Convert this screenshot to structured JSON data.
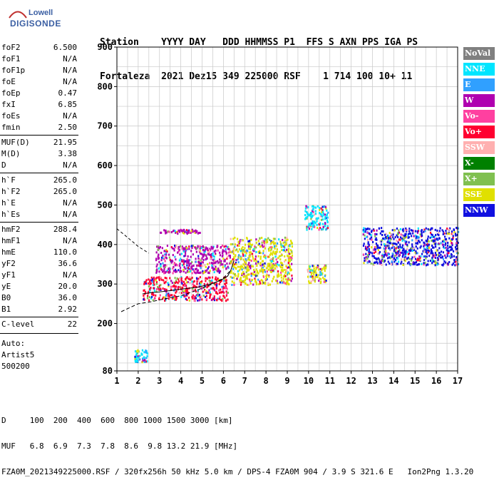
{
  "logo": {
    "line1": "Lowell",
    "line2": "DIGISONDE"
  },
  "header": {
    "row1": "Station    YYYY DAY   DDD HHMMSS P1  FFS S AXN PPS IGA PS",
    "row2": "Fortaleza  2021 Dez15 349 225000 RSF    1 714 100 10+ 11"
  },
  "params": {
    "group1": [
      {
        "label": "foF2",
        "value": "6.500"
      },
      {
        "label": "foF1",
        "value": "N/A"
      },
      {
        "label": "foF1p",
        "value": "N/A"
      },
      {
        "label": "foE",
        "value": "N/A"
      },
      {
        "label": "foEp",
        "value": "0.47"
      },
      {
        "label": "fxI",
        "value": "6.85"
      },
      {
        "label": "foEs",
        "value": "N/A"
      },
      {
        "label": "fmin",
        "value": "2.50"
      }
    ],
    "group2": [
      {
        "label": "MUF(D)",
        "value": "21.95"
      },
      {
        "label": "M(D)",
        "value": "3.38"
      },
      {
        "label": "D",
        "value": "N/A"
      }
    ],
    "group3": [
      {
        "label": "h`F",
        "value": "265.0"
      },
      {
        "label": "h`F2",
        "value": "265.0"
      },
      {
        "label": "h`E",
        "value": "N/A"
      },
      {
        "label": "h`Es",
        "value": "N/A"
      }
    ],
    "group4": [
      {
        "label": "hmF2",
        "value": "288.4"
      },
      {
        "label": "hmF1",
        "value": "N/A"
      },
      {
        "label": "hmE",
        "value": "110.0"
      },
      {
        "label": "yF2",
        "value": "36.6"
      },
      {
        "label": "yF1",
        "value": "N/A"
      },
      {
        "label": "yE",
        "value": "20.0"
      },
      {
        "label": "B0",
        "value": "36.0"
      },
      {
        "label": "B1",
        "value": "2.92"
      }
    ],
    "clevel": {
      "label": "C-level",
      "value": "22"
    },
    "auto": [
      "Auto:",
      "Artist5",
      "500200"
    ]
  },
  "legend": [
    {
      "label": "NoVal",
      "color": "#808080"
    },
    {
      "label": "NNE",
      "color": "#00e5ff"
    },
    {
      "label": "E",
      "color": "#30a0ff"
    },
    {
      "label": "W",
      "color": "#b000b0"
    },
    {
      "label": "Vo-",
      "color": "#ff40a0"
    },
    {
      "label": "Vo+",
      "color": "#ff0030"
    },
    {
      "label": "SSW",
      "color": "#ffb0b0"
    },
    {
      "label": "X-",
      "color": "#008000"
    },
    {
      "label": "X+",
      "color": "#80c050"
    },
    {
      "label": "SSE",
      "color": "#e0e000"
    },
    {
      "label": "NNW",
      "color": "#1010e0"
    }
  ],
  "chart_data": {
    "type": "scatter",
    "xlabel": "",
    "ylabel": "",
    "xlim": [
      1,
      17
    ],
    "ylim": [
      80,
      900
    ],
    "xticks": [
      "1",
      "2",
      "3",
      "4",
      "5",
      "6",
      "7",
      "8",
      "9",
      "10",
      "11",
      "12",
      "13",
      "14",
      "15",
      "16",
      "17"
    ],
    "yticks": [
      "80",
      "200",
      "300",
      "400",
      "500",
      "600",
      "700",
      "800",
      "900"
    ],
    "ytick_values": [
      80,
      200,
      300,
      400,
      500,
      600,
      700,
      800,
      900
    ],
    "grid": true,
    "ionogram_regions": [
      {
        "direction": "W",
        "f_range": [
          3.0,
          4.9
        ],
        "h_range": [
          430,
          440
        ]
      },
      {
        "direction": "W",
        "f_range": [
          2.8,
          6.3
        ],
        "h_range": [
          330,
          400
        ]
      },
      {
        "direction": "Vo+",
        "f_range": [
          2.2,
          6.2
        ],
        "h_range": [
          260,
          320
        ]
      },
      {
        "direction": "SSE",
        "f_range": [
          6.3,
          9.2
        ],
        "h_range": [
          300,
          420
        ]
      },
      {
        "direction": "NNE",
        "f_range": [
          9.8,
          10.9
        ],
        "h_range": [
          440,
          500
        ]
      },
      {
        "direction": "SSE",
        "f_range": [
          9.9,
          10.8
        ],
        "h_range": [
          305,
          350
        ]
      },
      {
        "direction": "NNW",
        "f_range": [
          12.5,
          17.0
        ],
        "h_range": [
          350,
          445
        ]
      },
      {
        "direction": "NNE",
        "f_range": [
          1.8,
          2.4
        ],
        "h_range": [
          105,
          135
        ]
      }
    ],
    "traces": [
      {
        "name": "virtual height trace",
        "x": [
          2.2,
          2.6,
          3.0,
          3.6,
          4.2,
          4.8,
          5.4,
          5.9,
          6.2,
          6.35,
          6.5
        ],
        "y": [
          275,
          278,
          280,
          284,
          288,
          292,
          300,
          310,
          320,
          335,
          360
        ]
      },
      {
        "name": "profile",
        "x": [
          1.2,
          1.6,
          2.0,
          2.6,
          3.2,
          4.0,
          4.8,
          5.5,
          6.0,
          6.35
        ],
        "y": [
          230,
          240,
          250,
          255,
          262,
          270,
          285,
          300,
          315,
          335
        ]
      },
      {
        "name": "upper dashed",
        "x": [
          1.0,
          1.5,
          2.0,
          2.5
        ],
        "y": [
          440,
          418,
          395,
          378
        ]
      }
    ]
  },
  "footer": {
    "row1": "D     100  200  400  600  800 1000 1500 3000 [km]",
    "row2": "MUF   6.8  6.9  7.3  7.8  8.6  9.8 13.2 21.9 [MHz]",
    "row3": "FZA0M_2021349225000.RSF / 320fx256h 50 kHz 5.0 km / DPS-4 FZA0M 904 / 3.9 S 321.6 E   Ion2Png 1.3.20"
  }
}
